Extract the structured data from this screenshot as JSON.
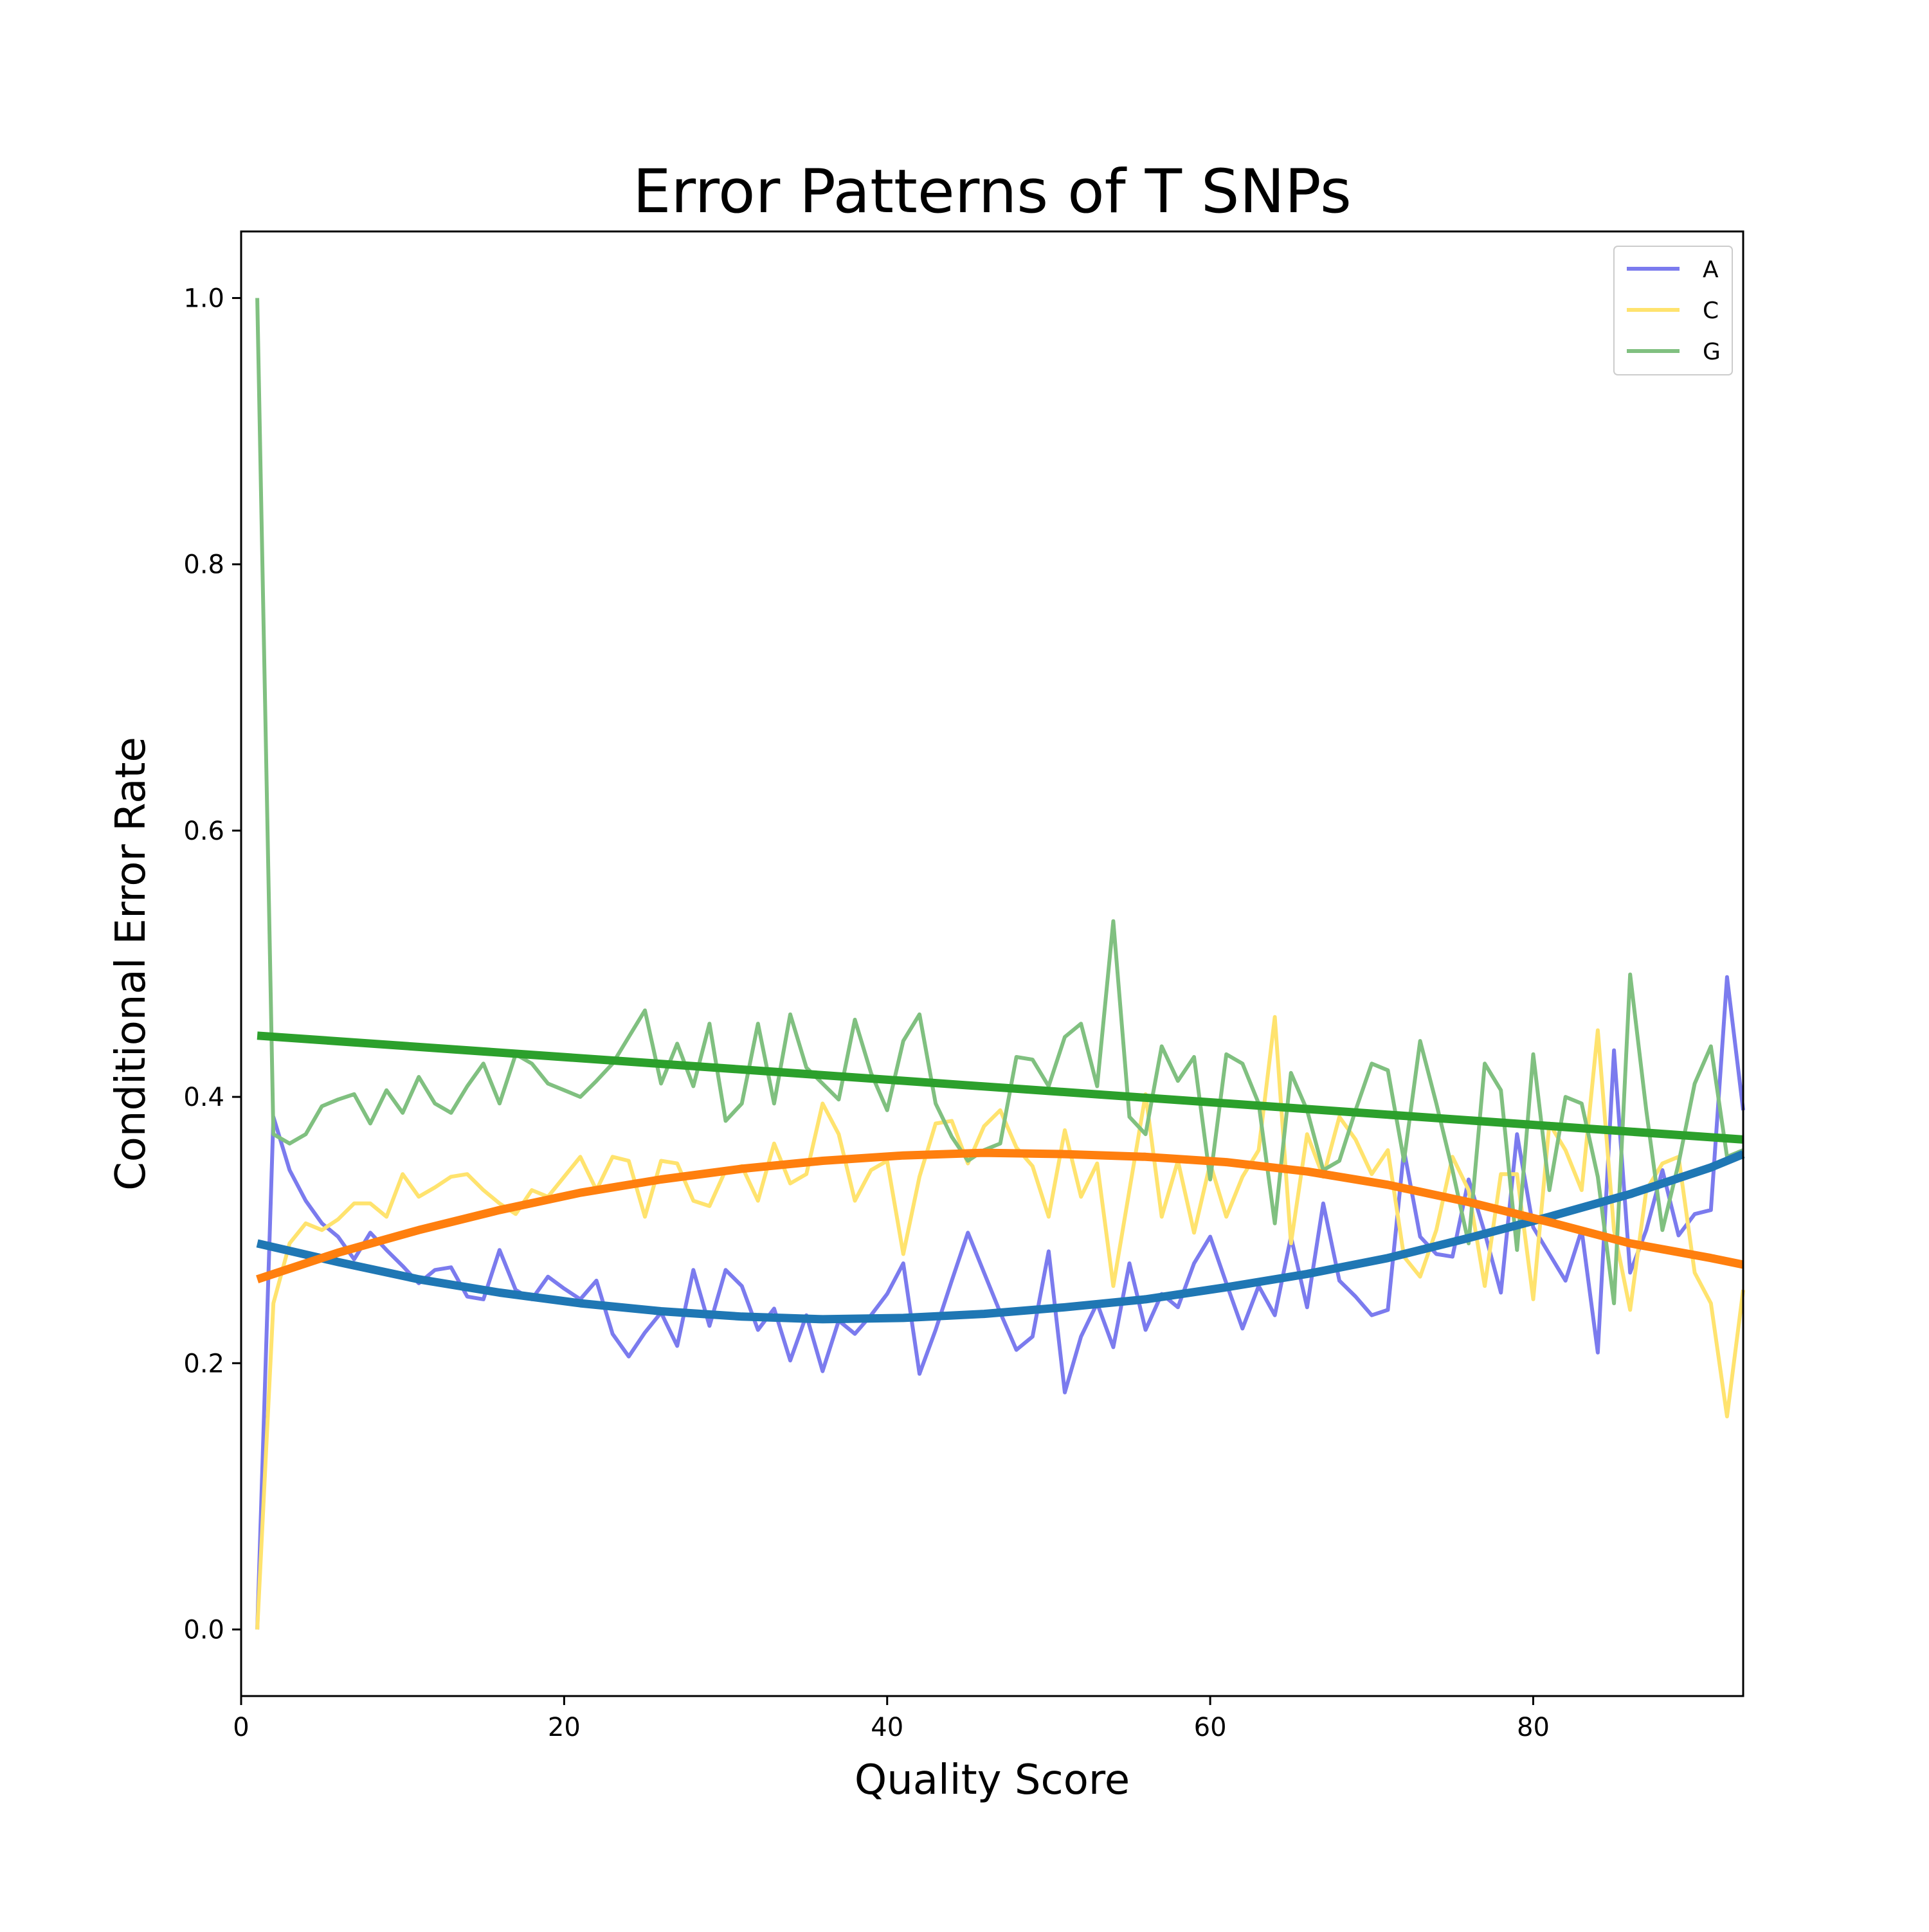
{
  "chart_data": {
    "type": "line",
    "title": "Error Patterns of T SNPs",
    "xlabel": "Quality Score",
    "ylabel": "Conditional Error Rate",
    "xlim": [
      0,
      93
    ],
    "ylim": [
      -0.05,
      1.05
    ],
    "xticks": [
      0,
      20,
      40,
      60,
      80
    ],
    "yticks": [
      0.0,
      0.2,
      0.4,
      0.6,
      0.8,
      1.0
    ],
    "xtick_labels": [
      "0",
      "20",
      "40",
      "60",
      "80"
    ],
    "ytick_labels": [
      "0.0",
      "0.2",
      "0.4",
      "0.6",
      "0.8",
      "1.0"
    ],
    "grid": false,
    "legend_position": "top-right",
    "series": [
      {
        "name": "A",
        "color": "#7b7bee",
        "x": [
          1,
          2,
          3,
          4,
          5,
          6,
          7,
          8,
          9,
          10,
          11,
          12,
          13,
          14,
          15,
          16,
          17,
          18,
          19,
          20,
          21,
          22,
          23,
          24,
          25,
          26,
          27,
          28,
          29,
          30,
          31,
          32,
          33,
          34,
          35,
          36,
          37,
          38,
          39,
          40,
          41,
          42,
          43,
          44,
          45,
          46,
          47,
          48,
          49,
          50,
          51,
          52,
          53,
          54,
          55,
          56,
          57,
          58,
          59,
          60,
          61,
          62,
          63,
          64,
          65,
          66,
          67,
          68,
          69,
          70,
          71,
          72,
          73,
          74,
          75,
          76,
          77,
          78,
          79,
          80,
          81,
          82,
          83,
          84,
          85,
          86,
          87,
          88,
          89,
          90,
          91,
          92,
          93
        ],
        "values": [
          0.0,
          0.385,
          0.345,
          0.322,
          0.305,
          0.295,
          0.278,
          0.298,
          0.285,
          0.273,
          0.26,
          0.27,
          0.272,
          0.25,
          0.248,
          0.285,
          0.255,
          0.248,
          0.265,
          0.256,
          0.248,
          0.262,
          0.222,
          0.205,
          0.223,
          0.238,
          0.213,
          0.27,
          0.228,
          0.27,
          0.258,
          0.225,
          0.241,
          0.202,
          0.236,
          0.194,
          0.232,
          0.222,
          0.236,
          0.252,
          0.275,
          0.192,
          0.225,
          0.262,
          0.298,
          0.268,
          0.238,
          0.21,
          0.22,
          0.284,
          0.178,
          0.22,
          0.245,
          0.212,
          0.275,
          0.225,
          0.252,
          0.242,
          0.275,
          0.295,
          0.26,
          0.226,
          0.258,
          0.236,
          0.295,
          0.242,
          0.32,
          0.262,
          0.25,
          0.236,
          0.24,
          0.36,
          0.295,
          0.282,
          0.28,
          0.338,
          0.298,
          0.253,
          0.372,
          0.302,
          0.282,
          0.262,
          0.3,
          0.208,
          0.435,
          0.268,
          0.3,
          0.345,
          0.296,
          0.312,
          0.315,
          0.49,
          0.39
        ]
      },
      {
        "name": "C",
        "color": "#ffe36e",
        "x": [
          1,
          2,
          3,
          4,
          5,
          6,
          7,
          8,
          9,
          10,
          11,
          12,
          13,
          14,
          15,
          16,
          17,
          18,
          19,
          20,
          21,
          22,
          23,
          24,
          25,
          26,
          27,
          28,
          29,
          30,
          31,
          32,
          33,
          34,
          35,
          36,
          37,
          38,
          39,
          40,
          41,
          42,
          43,
          44,
          45,
          46,
          47,
          48,
          49,
          50,
          51,
          52,
          53,
          54,
          55,
          56,
          57,
          58,
          59,
          60,
          61,
          62,
          63,
          64,
          65,
          66,
          67,
          68,
          69,
          70,
          71,
          72,
          73,
          74,
          75,
          76,
          77,
          78,
          79,
          80,
          81,
          82,
          83,
          84,
          85,
          86,
          87,
          88,
          89,
          90,
          91,
          92,
          93
        ],
        "values": [
          0.0,
          0.245,
          0.29,
          0.305,
          0.3,
          0.308,
          0.32,
          0.32,
          0.31,
          0.342,
          0.325,
          0.332,
          0.34,
          0.342,
          0.33,
          0.32,
          0.312,
          0.33,
          0.325,
          0.34,
          0.355,
          0.33,
          0.355,
          0.352,
          0.31,
          0.352,
          0.35,
          0.322,
          0.318,
          0.345,
          0.348,
          0.322,
          0.365,
          0.335,
          0.342,
          0.395,
          0.372,
          0.322,
          0.345,
          0.352,
          0.282,
          0.34,
          0.38,
          0.382,
          0.35,
          0.378,
          0.39,
          0.362,
          0.348,
          0.31,
          0.375,
          0.325,
          0.35,
          0.258,
          0.33,
          0.402,
          0.31,
          0.352,
          0.298,
          0.35,
          0.31,
          0.34,
          0.36,
          0.46,
          0.29,
          0.372,
          0.34,
          0.385,
          0.368,
          0.342,
          0.36,
          0.28,
          0.265,
          0.3,
          0.355,
          0.33,
          0.258,
          0.342,
          0.342,
          0.248,
          0.38,
          0.36,
          0.33,
          0.45,
          0.3,
          0.24,
          0.33,
          0.35,
          0.355,
          0.268,
          0.245,
          0.16,
          0.255
        ]
      },
      {
        "name": "G",
        "color": "#80c080",
        "x": [
          1,
          2,
          3,
          4,
          5,
          6,
          7,
          8,
          9,
          10,
          11,
          12,
          13,
          14,
          15,
          16,
          17,
          18,
          19,
          20,
          21,
          22,
          23,
          24,
          25,
          26,
          27,
          28,
          29,
          30,
          31,
          32,
          33,
          34,
          35,
          36,
          37,
          38,
          39,
          40,
          41,
          42,
          43,
          44,
          45,
          46,
          47,
          48,
          49,
          50,
          51,
          52,
          53,
          54,
          55,
          56,
          57,
          58,
          59,
          60,
          61,
          62,
          63,
          64,
          65,
          66,
          67,
          68,
          69,
          70,
          71,
          72,
          73,
          74,
          75,
          76,
          77,
          78,
          79,
          80,
          81,
          82,
          83,
          84,
          85,
          86,
          87,
          88,
          89,
          90,
          91,
          92,
          93
        ],
        "values": [
          1.0,
          0.372,
          0.365,
          0.372,
          0.393,
          0.398,
          0.402,
          0.38,
          0.405,
          0.388,
          0.415,
          0.395,
          0.388,
          0.408,
          0.425,
          0.395,
          0.432,
          0.425,
          0.41,
          0.405,
          0.4,
          0.412,
          0.425,
          0.445,
          0.465,
          0.41,
          0.44,
          0.408,
          0.455,
          0.382,
          0.395,
          0.455,
          0.395,
          0.462,
          0.422,
          0.41,
          0.398,
          0.458,
          0.418,
          0.39,
          0.442,
          0.462,
          0.395,
          0.37,
          0.352,
          0.36,
          0.365,
          0.43,
          0.428,
          0.408,
          0.445,
          0.455,
          0.408,
          0.532,
          0.385,
          0.372,
          0.438,
          0.412,
          0.43,
          0.338,
          0.432,
          0.425,
          0.395,
          0.305,
          0.418,
          0.39,
          0.345,
          0.352,
          0.39,
          0.425,
          0.42,
          0.352,
          0.442,
          0.395,
          0.345,
          0.29,
          0.425,
          0.405,
          0.285,
          0.432,
          0.33,
          0.4,
          0.395,
          0.34,
          0.245,
          0.492,
          0.39,
          0.3,
          0.35,
          0.41,
          0.438,
          0.355,
          0.36
        ]
      },
      {
        "color": "#1f77b4",
        "fit": "cubic",
        "x": [
          1,
          6,
          11,
          16,
          21,
          26,
          31,
          36,
          41,
          46,
          51,
          56,
          61,
          66,
          71,
          76,
          81,
          86,
          91,
          93
        ],
        "values": [
          0.29,
          0.276,
          0.263,
          0.253,
          0.245,
          0.239,
          0.235,
          0.233,
          0.234,
          0.237,
          0.242,
          0.248,
          0.257,
          0.267,
          0.279,
          0.294,
          0.31,
          0.327,
          0.347,
          0.357
        ]
      },
      {
        "color": "#ff7f0e",
        "fit": "cubic",
        "x": [
          1,
          6,
          11,
          16,
          21,
          26,
          31,
          36,
          41,
          46,
          51,
          56,
          61,
          66,
          71,
          76,
          81,
          86,
          91,
          93
        ],
        "values": [
          0.263,
          0.283,
          0.3,
          0.315,
          0.328,
          0.338,
          0.346,
          0.352,
          0.356,
          0.358,
          0.357,
          0.355,
          0.351,
          0.344,
          0.334,
          0.321,
          0.306,
          0.29,
          0.279,
          0.274
        ]
      },
      {
        "color": "#2ca02c",
        "fit": "linear",
        "x": [
          1,
          93
        ],
        "values": [
          0.446,
          0.368
        ]
      }
    ]
  }
}
